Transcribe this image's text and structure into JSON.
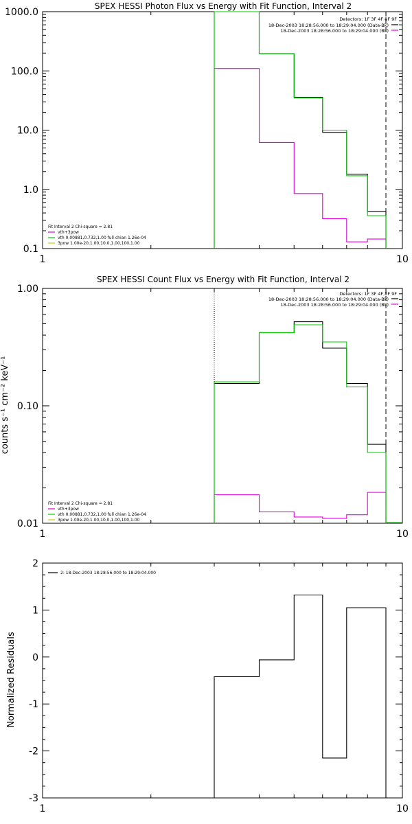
{
  "chart_data": [
    {
      "type": "line",
      "title": "SPEX HESSI Photon Flux vs Energy with Fit Function, Interval 2",
      "scale": "log-log",
      "xlim": [
        1,
        10
      ],
      "ylim": [
        0.1,
        1000
      ],
      "xticks": [
        "1",
        "10"
      ],
      "yticks": [
        "0.1",
        "1.0",
        "10.0",
        "100.0",
        "1000.0"
      ],
      "ylabel": "",
      "detectors": "Detectors: 1F 3F 4F 8F 9F",
      "legend_top": [
        {
          "label": "18-Dec-2003 18:28:56.000 to 18:29:04.000 (Data-Bk)",
          "color": "#000000"
        },
        {
          "label": "18-Dec-2003 18:28:56.000 to 18:29:04.000 (Bk)",
          "color": "#e000e0"
        }
      ],
      "fit_info": "Fit Interval  2   Chi-square = 2.81",
      "legend_bottom": [
        {
          "label": "vth+3pow",
          "color": "#e000e0"
        },
        {
          "label": "vth 0.00881,0.732,1.00  full chian 1.26e-04",
          "color": "#00cc00"
        },
        {
          "label": "3pow 1.00e-20,1.00,10.0,1.00,100,1.00",
          "color": "#cccc00"
        }
      ],
      "vlines": [
        {
          "x": 3,
          "style": "dotted",
          "color": "#00cc00"
        },
        {
          "x": 9,
          "style": "dashed",
          "color": "#000000"
        }
      ],
      "bin_edges": [
        3,
        4,
        5,
        6,
        7,
        8,
        9
      ],
      "series": [
        {
          "color": "#000000",
          "values": [
            1000,
            195,
            36,
            9.2,
            1.8,
            0.42
          ]
        },
        {
          "color": "#e000e0",
          "values": [
            110,
            6.2,
            0.85,
            0.32,
            0.13,
            0.145
          ]
        },
        {
          "color": "#00cc00",
          "values": [
            1000,
            195,
            35,
            10,
            1.7,
            0.36
          ]
        }
      ]
    },
    {
      "type": "line",
      "title": "SPEX HESSI Count Flux vs Energy with Fit Function, Interval 2",
      "scale": "log-log",
      "xlim": [
        1,
        10
      ],
      "ylim": [
        0.01,
        1.0
      ],
      "xticks": [
        "1",
        "10"
      ],
      "yticks": [
        "0.01",
        "0.10",
        "1.00"
      ],
      "ylabel": "counts s⁻¹ cm⁻² keV⁻¹",
      "detectors": "Detectors: 1F 3F 4F 8F 9F",
      "legend_top": [
        {
          "label": "18-Dec-2003 18:28:56.000 to 18:29:04.000 (Data-Bk)",
          "color": "#000000"
        },
        {
          "label": "18-Dec-2003 18:28:56.000 to 18:29:04.000 (Bk)",
          "color": "#e000e0"
        }
      ],
      "fit_info": "Fit Interval  2   Chi-square = 2.81",
      "legend_bottom": [
        {
          "label": "vth+3pow",
          "color": "#e000e0"
        },
        {
          "label": "vth 0.00881,0.732,1.00  full chian 1.26e-04",
          "color": "#00cc00"
        },
        {
          "label": "3pow 1.00e-20,1.00,10.0,1.00,100,1.00",
          "color": "#cccc00"
        }
      ],
      "vlines": [
        {
          "x": 3,
          "style": "dotted",
          "color": "#000000"
        },
        {
          "x": 9,
          "style": "dashed",
          "color": "#000000"
        }
      ],
      "bin_edges": [
        3,
        4,
        5,
        6,
        7,
        8,
        9
      ],
      "series": [
        {
          "color": "#000000",
          "values": [
            0.155,
            0.42,
            0.52,
            0.31,
            0.155,
            0.047
          ]
        },
        {
          "color": "#e000e0",
          "values": [
            0.0175,
            0.0125,
            0.0113,
            0.011,
            0.0118,
            0.0183
          ]
        },
        {
          "color": "#00cc00",
          "values": [
            0.16,
            0.42,
            0.49,
            0.35,
            0.145,
            0.04
          ]
        }
      ],
      "tail": {
        "color": "#00cc00",
        "x": [
          9,
          10
        ],
        "value": 0.01
      }
    },
    {
      "type": "line",
      "title": "",
      "scale": "log-x",
      "xlim": [
        1,
        10
      ],
      "ylim": [
        -3,
        2
      ],
      "xticks": [
        "1",
        "10"
      ],
      "yticks": [
        "-3",
        "-2",
        "-1",
        "0",
        "1",
        "2"
      ],
      "ylabel": "Normalized Residuals",
      "legend_top": [
        {
          "label": "2: 18-Dec-2003 18:28:56.000 to 18:29:04.000",
          "color": "#000000"
        }
      ],
      "bin_edges": [
        3,
        4,
        5,
        6,
        7,
        8,
        9
      ],
      "series": [
        {
          "color": "#000000",
          "values": [
            -0.42,
            -0.06,
            1.32,
            -2.15,
            1.05,
            1.05
          ]
        }
      ]
    }
  ]
}
